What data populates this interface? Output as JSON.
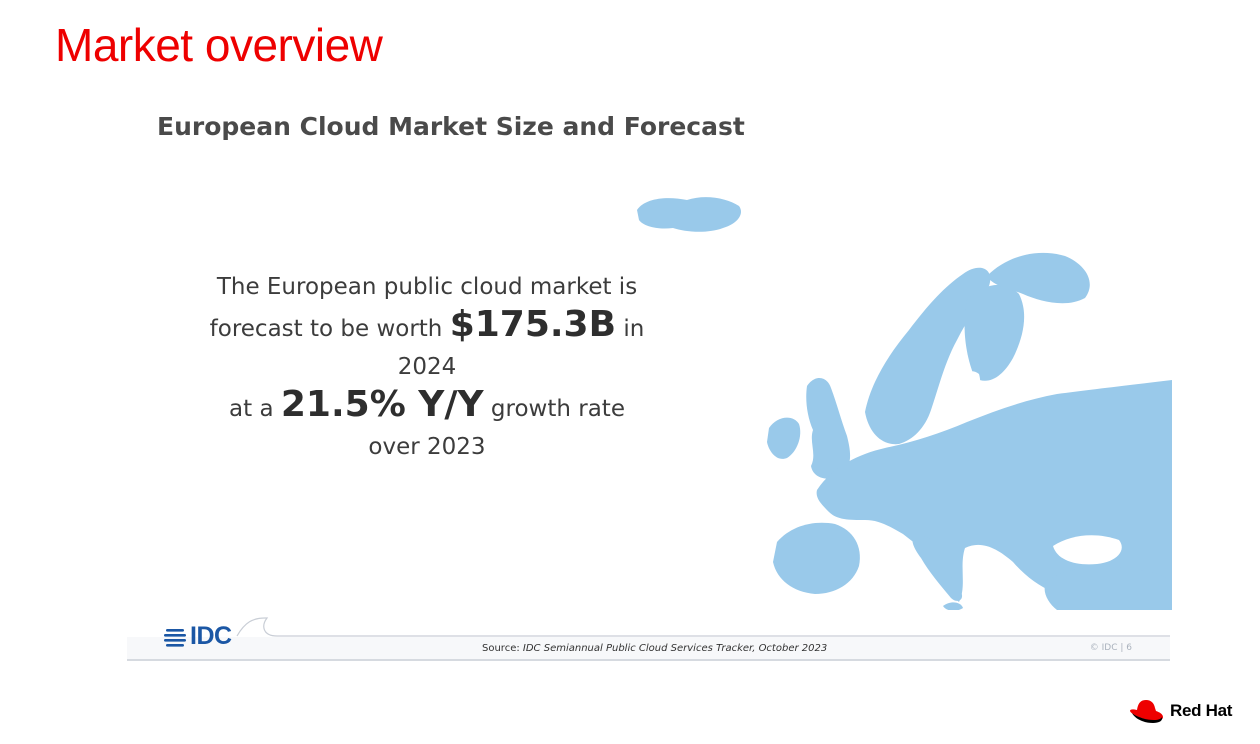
{
  "slide": {
    "title": "Market overview"
  },
  "infographic": {
    "title": "European Cloud Market Size and Forecast",
    "line1": "The European public cloud market is",
    "line2_pre": "forecast to be worth",
    "market_value": "$175.3B",
    "line2_post": "in",
    "year": "2024",
    "line4_pre": "at a",
    "growth_rate": "21.5% Y/Y",
    "line4_post": "growth rate",
    "line5": "over 2023",
    "map_color": "#99c9ea",
    "map_icon": "europe-map-icon"
  },
  "footer": {
    "logo_text": "IDC",
    "source_label": "Source:",
    "source_text": "IDC Semiannual Public Cloud Services Tracker, October 2023",
    "copyright": "© IDC |",
    "page_number": "6"
  },
  "brand": {
    "name": "Red Hat",
    "accent": "#ee0000",
    "icon": "red-hat-logo-icon"
  }
}
